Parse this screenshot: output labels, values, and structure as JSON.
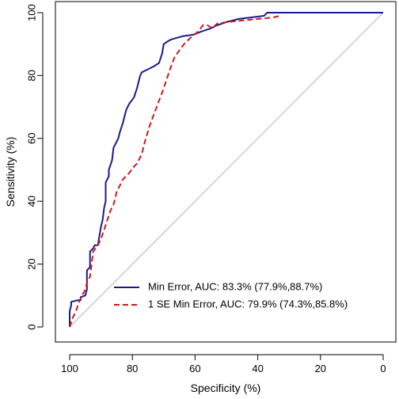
{
  "chart_data": {
    "type": "line",
    "title": "",
    "xlabel": "Specificity (%)",
    "ylabel": "Sensitivity (%)",
    "xlim": [
      100,
      0
    ],
    "ylim": [
      0,
      100
    ],
    "x_reversed": true,
    "x_ticks": [
      100,
      80,
      60,
      40,
      20,
      0
    ],
    "y_ticks": [
      0,
      20,
      40,
      60,
      80,
      100
    ],
    "x_tick_labels": [
      "100",
      "80",
      "60",
      "40",
      "20",
      "0"
    ],
    "y_tick_labels": [
      "0",
      "20",
      "40",
      "60",
      "80",
      "100"
    ],
    "grid": false,
    "legend_position": "bottom-right",
    "reference_line": {
      "from": [
        100,
        0
      ],
      "to": [
        0,
        100
      ],
      "color": "#b3b3b3"
    },
    "series": [
      {
        "name": "Min Error, AUC: 83.3% (77.9%,88.7%)",
        "color": "#1a1a8c",
        "dash": "solid",
        "points": [
          [
            100,
            0
          ],
          [
            100,
            5
          ],
          [
            99.5,
            7
          ],
          [
            99.5,
            8
          ],
          [
            97.5,
            8.5
          ],
          [
            96.5,
            8.5
          ],
          [
            96.5,
            9.5
          ],
          [
            95,
            10
          ],
          [
            94.5,
            12
          ],
          [
            94.5,
            18
          ],
          [
            93.5,
            19
          ],
          [
            93.5,
            24
          ],
          [
            92.5,
            25
          ],
          [
            92,
            26
          ],
          [
            91,
            26
          ],
          [
            90.5,
            29
          ],
          [
            90,
            32
          ],
          [
            89.5,
            34
          ],
          [
            89,
            38
          ],
          [
            88.5,
            40
          ],
          [
            88.5,
            46
          ],
          [
            87.5,
            48
          ],
          [
            87.5,
            50
          ],
          [
            86.5,
            53
          ],
          [
            86,
            57
          ],
          [
            85,
            59
          ],
          [
            84.5,
            60
          ],
          [
            84,
            62
          ],
          [
            83,
            65
          ],
          [
            82,
            69
          ],
          [
            81,
            71
          ],
          [
            79.5,
            73
          ],
          [
            78.5,
            76
          ],
          [
            78,
            78
          ],
          [
            77.5,
            80
          ],
          [
            77,
            81
          ],
          [
            75,
            82
          ],
          [
            73,
            83
          ],
          [
            71.5,
            84
          ],
          [
            70.5,
            87
          ],
          [
            70,
            90
          ],
          [
            68.5,
            91
          ],
          [
            67.5,
            91.5
          ],
          [
            64,
            92.5
          ],
          [
            60.5,
            93
          ],
          [
            58,
            94
          ],
          [
            55,
            95
          ],
          [
            53,
            96
          ],
          [
            50,
            97
          ],
          [
            46,
            98
          ],
          [
            38,
            99
          ],
          [
            37,
            100
          ],
          [
            0,
            100
          ]
        ]
      },
      {
        "name": "1 SE Min Error, AUC: 79.9% (74.3%,85.8%)",
        "color": "#cc1a1a",
        "dash": "dashed",
        "points": [
          [
            100,
            0
          ],
          [
            99,
            3
          ],
          [
            98,
            5
          ],
          [
            97,
            8
          ],
          [
            96,
            10
          ],
          [
            95,
            12
          ],
          [
            94.5,
            14
          ],
          [
            93.5,
            16
          ],
          [
            93,
            20
          ],
          [
            92.5,
            24
          ],
          [
            91,
            26
          ],
          [
            90,
            28
          ],
          [
            89,
            31
          ],
          [
            88,
            34
          ],
          [
            87,
            37
          ],
          [
            86,
            39
          ],
          [
            85,
            43
          ],
          [
            84,
            45
          ],
          [
            83,
            47
          ],
          [
            81,
            49
          ],
          [
            79.5,
            51
          ],
          [
            78.5,
            52
          ],
          [
            77,
            55
          ],
          [
            76,
            59
          ],
          [
            74.5,
            64
          ],
          [
            73,
            68
          ],
          [
            71.5,
            72
          ],
          [
            70,
            76
          ],
          [
            69,
            79
          ],
          [
            68,
            82
          ],
          [
            66.5,
            86
          ],
          [
            65,
            88
          ],
          [
            63.5,
            90
          ],
          [
            61.5,
            92
          ],
          [
            59,
            94
          ],
          [
            57.5,
            96
          ],
          [
            56,
            96
          ],
          [
            54.5,
            95
          ],
          [
            53,
            96.5
          ],
          [
            50,
            97
          ],
          [
            45,
            97.5
          ],
          [
            40,
            98
          ],
          [
            35,
            98.5
          ],
          [
            33,
            99
          ]
        ]
      }
    ]
  }
}
